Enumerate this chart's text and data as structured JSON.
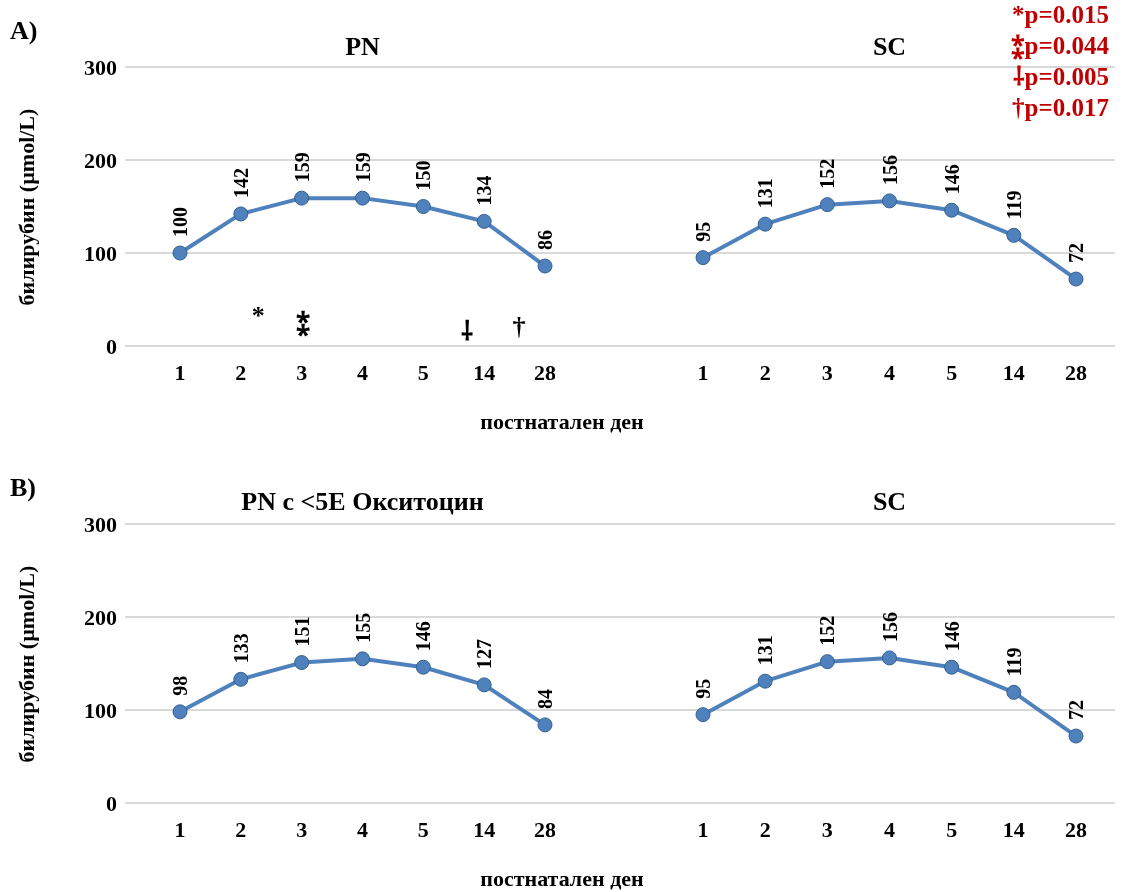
{
  "chart_data": [
    {
      "type": "line",
      "title": "PN",
      "xlabel": "постнатален ден",
      "ylabel": "билирубин (µmol/L)",
      "categories": [
        "1",
        "2",
        "3",
        "4",
        "5",
        "14",
        "28"
      ],
      "values": [
        100,
        142,
        159,
        159,
        150,
        134,
        86
      ],
      "color": "#4f81bd",
      "ylim": [
        0,
        300
      ],
      "yticks": [
        0,
        100,
        200,
        300
      ],
      "grid": "y",
      "marker": "circle",
      "data_labels": true,
      "annotations": [
        "A)",
        "*",
        "⁑",
        "⸸",
        "†"
      ]
    },
    {
      "type": "line",
      "title": "SC",
      "categories": [
        "1",
        "2",
        "3",
        "4",
        "5",
        "14",
        "28"
      ],
      "values": [
        95,
        131,
        152,
        156,
        146,
        119,
        72
      ],
      "color": "#4f81bd",
      "ylim": [
        0,
        300
      ],
      "yticks": [
        0,
        100,
        200,
        300
      ],
      "grid": "y",
      "marker": "circle",
      "data_labels": true,
      "tick_labels": "x",
      "annotations": [
        "*p=0.015",
        "⁑p=0.044",
        "⸸p=0.005",
        "†p=0.017"
      ]
    },
    {
      "type": "line",
      "title": "PN с <5Е Окситоцин",
      "xlabel": "постнатален ден",
      "ylabel": "билирубин (µmol/L)",
      "categories": [
        "1",
        "2",
        "3",
        "4",
        "5",
        "14",
        "28"
      ],
      "values": [
        98,
        133,
        151,
        155,
        146,
        127,
        84
      ],
      "color": "#4f81bd",
      "ylim": [
        0,
        300
      ],
      "yticks": [
        0,
        100,
        200,
        300
      ],
      "grid": "y",
      "marker": "circle",
      "data_labels": true,
      "annotations": [
        "B)"
      ]
    },
    {
      "type": "line",
      "title": "SC",
      "categories": [
        "1",
        "2",
        "3",
        "4",
        "5",
        "14",
        "28"
      ],
      "values": [
        95,
        131,
        152,
        156,
        146,
        119,
        72
      ],
      "color": "#4f81bd",
      "ylim": [
        0,
        300
      ],
      "yticks": [
        0,
        100,
        200,
        300
      ],
      "grid": "y",
      "marker": "circle",
      "data_labels": true,
      "tick_labels": "x"
    }
  ]
}
